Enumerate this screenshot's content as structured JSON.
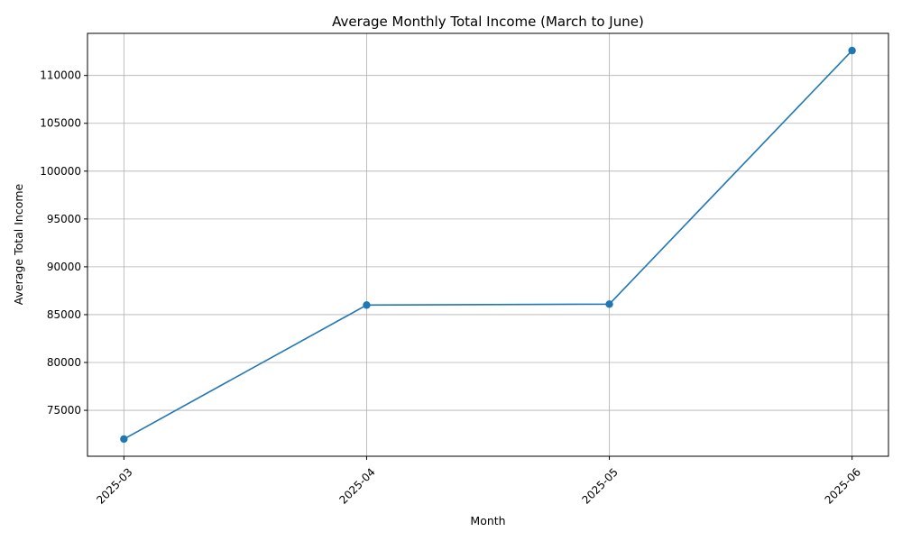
{
  "chart_data": {
    "type": "line",
    "title": "Average Monthly Total Income (March to June)",
    "xlabel": "Month",
    "ylabel": "Average Total Income",
    "categories": [
      "2025-03",
      "2025-04",
      "2025-05",
      "2025-06"
    ],
    "series": [
      {
        "values": [
          72000,
          86000,
          86100,
          112600
        ]
      }
    ],
    "ylim": [
      70200,
      114400
    ],
    "yticks": [
      75000,
      80000,
      85000,
      90000,
      95000,
      100000,
      105000,
      110000
    ],
    "grid": true,
    "marker": "circle",
    "line_color": "#1f77b4"
  }
}
